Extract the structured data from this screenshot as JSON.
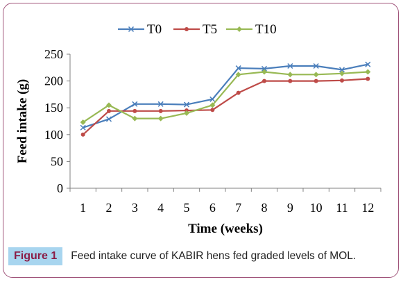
{
  "chart_data": {
    "type": "line",
    "xlabel": "Time (weeks)",
    "ylabel": "Feed intake (g)",
    "x": [
      1,
      2,
      3,
      4,
      5,
      6,
      7,
      8,
      9,
      10,
      11,
      12
    ],
    "ylim": [
      0,
      250
    ],
    "yticks": [
      0,
      50,
      100,
      150,
      200,
      250
    ],
    "grid": false,
    "legend_position": "top",
    "series": [
      {
        "name": "T0",
        "color": "#4a7ebb",
        "marker": "x",
        "values": [
          113,
          129,
          157,
          157,
          156,
          166,
          224,
          223,
          228,
          228,
          221,
          231
        ]
      },
      {
        "name": "T5",
        "color": "#be4b48",
        "marker": "circle",
        "values": [
          100,
          144,
          144,
          144,
          145,
          146,
          178,
          200,
          200,
          200,
          201,
          204
        ]
      },
      {
        "name": "T10",
        "color": "#98b954",
        "marker": "diamond",
        "values": [
          123,
          155,
          130,
          130,
          140,
          155,
          212,
          217,
          212,
          212,
          214,
          217
        ]
      }
    ]
  },
  "caption": {
    "label": "Figure 1",
    "text": "Feed intake curve of KABIR hens fed graded levels of MOL."
  }
}
